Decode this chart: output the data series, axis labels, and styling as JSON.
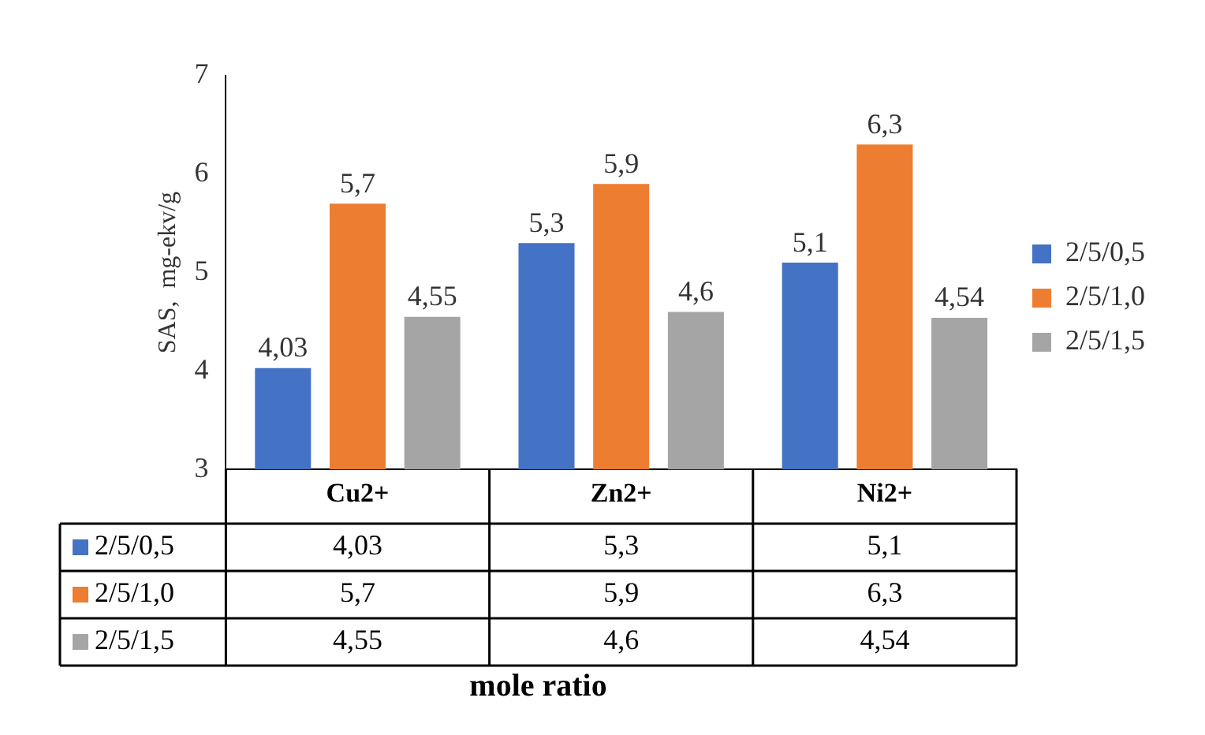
{
  "chart_data": {
    "type": "bar",
    "categories": [
      "Cu2+",
      "Zn2+",
      "Ni2+"
    ],
    "series": [
      {
        "name": "2/5/0,5",
        "color": "#4472c4",
        "values": [
          4.03,
          5.3,
          5.1
        ],
        "value_labels": [
          "4,03",
          "5,3",
          "5,1"
        ]
      },
      {
        "name": "2/5/1,0",
        "color": "#ed7d31",
        "values": [
          5.7,
          5.9,
          6.3
        ],
        "value_labels": [
          "5,7",
          "5,9",
          "6,3"
        ]
      },
      {
        "name": "2/5/1,5",
        "color": "#a5a5a5",
        "values": [
          4.55,
          4.6,
          4.54
        ],
        "value_labels": [
          "4,55",
          "4,6",
          "4,54"
        ]
      }
    ],
    "ylim": [
      3,
      7
    ],
    "yticks": [
      3,
      4,
      5,
      6,
      7
    ],
    "ylabel": "SAS,  mg-ekv/g",
    "annotations": [
      "mole ratio"
    ],
    "grid": false,
    "legend": "right"
  }
}
